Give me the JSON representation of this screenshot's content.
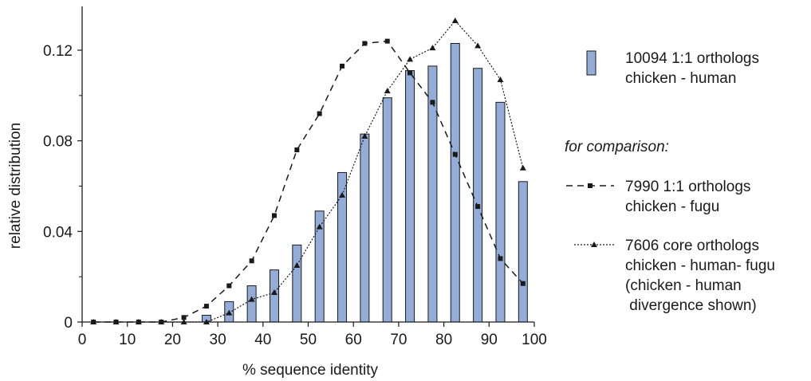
{
  "chart_data": {
    "type": "bar",
    "xlabel": "% sequence identity",
    "ylabel": "relative distribution",
    "xlim": [
      0,
      100
    ],
    "ylim": [
      0,
      0.14
    ],
    "x_ticks": [
      "0",
      "10",
      "20",
      "30",
      "40",
      "50",
      "60",
      "70",
      "80",
      "90",
      "100"
    ],
    "y_ticks": [
      "0",
      "0.04",
      "0.08",
      "0.12"
    ],
    "grid": false,
    "legend_position": "right",
    "x": [
      2.5,
      7.5,
      12.5,
      17.5,
      22.5,
      27.5,
      32.5,
      37.5,
      42.5,
      47.5,
      52.5,
      57.5,
      62.5,
      67.5,
      72.5,
      77.5,
      82.5,
      87.5,
      92.5,
      97.5
    ],
    "series": [
      {
        "name": "10094 1:1 orthologs chicken - human",
        "legend_lines": [
          "10094 1:1 orthologs",
          "chicken - human"
        ],
        "kind": "bar",
        "color": "#93add8",
        "values": [
          0,
          0,
          0,
          0,
          0,
          0.003,
          0.009,
          0.016,
          0.023,
          0.034,
          0.049,
          0.066,
          0.083,
          0.099,
          0.111,
          0.113,
          0.123,
          0.112,
          0.097,
          0.062
        ]
      },
      {
        "name": "7990 1:1 orthologs chicken - fugu",
        "legend_lines": [
          "7990 1:1 orthologs",
          "chicken - fugu"
        ],
        "kind": "line",
        "marker": "square",
        "dash": "dashed",
        "color": "#1a1a1a",
        "values": [
          0,
          0,
          0,
          0,
          0.002,
          0.007,
          0.016,
          0.027,
          0.047,
          0.076,
          0.092,
          0.113,
          0.123,
          0.124,
          0.11,
          0.097,
          0.074,
          0.051,
          0.028,
          0.017
        ]
      },
      {
        "name": "7606 core orthologs chicken - human- fugu (chicken - human divergence shown)",
        "legend_lines": [
          "7606 core orthologs",
          "chicken - human- fugu",
          "(chicken - human",
          " divergence shown)"
        ],
        "kind": "line",
        "marker": "triangle",
        "dash": "dotted",
        "color": "#1a1a1a",
        "values": [
          0,
          0,
          0,
          0,
          0,
          0,
          0.004,
          0.01,
          0.013,
          0.025,
          0.042,
          0.056,
          0.082,
          0.102,
          0.116,
          0.121,
          0.133,
          0.122,
          0.107,
          0.068
        ]
      }
    ],
    "legend_note": "for comparison:"
  }
}
